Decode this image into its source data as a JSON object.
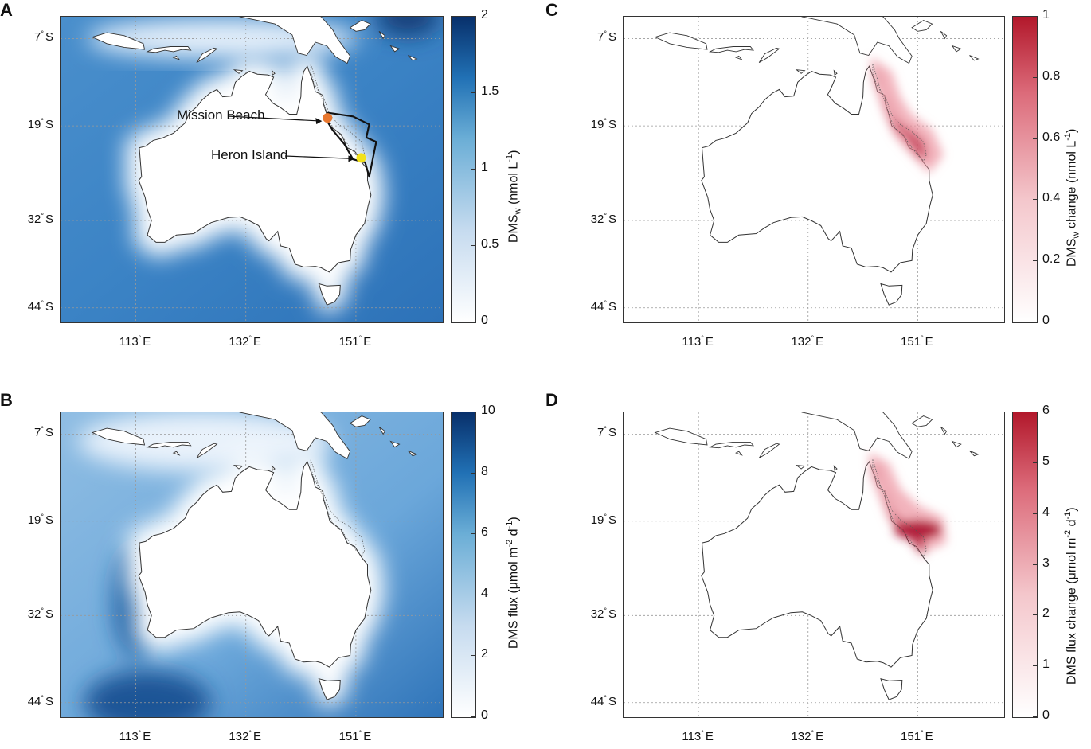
{
  "colors": {
    "blue_low": "#ffffff",
    "blue_high": "#08306b",
    "red_low": "#ffffff",
    "red_high": "#b2182b",
    "mission_beach": "#e8772e",
    "heron_island": "#f2e11a"
  },
  "axes": {
    "lat_ticks": [
      "7",
      "19",
      "32",
      "44"
    ],
    "lat_suffix": "S",
    "lon_ticks": [
      "113",
      "132",
      "151"
    ],
    "lon_suffix": "E"
  },
  "panels": [
    {
      "letter": "A",
      "scale": "blue",
      "colorbar": {
        "ticks": [
          "0",
          "0.5",
          "1",
          "1.5",
          "2"
        ],
        "min": 0,
        "max": 2,
        "title": "DMS",
        "title_sub": "w",
        "title_rest": " (nmol L",
        "title_sup": "-1",
        "title_end": ")"
      },
      "annotations": [
        {
          "label": "Mission Beach",
          "color_key": "mission_beach"
        },
        {
          "label": "Heron Island",
          "color_key": "heron_island"
        }
      ]
    },
    {
      "letter": "C",
      "scale": "red",
      "colorbar": {
        "ticks": [
          "0",
          "0.2",
          "0.4",
          "0.6",
          "0.8",
          "1"
        ],
        "min": 0,
        "max": 1,
        "title": "DMS",
        "title_sub": "w",
        "title_rest": " change (nmol L",
        "title_sup": "-1",
        "title_end": ")"
      }
    },
    {
      "letter": "B",
      "scale": "blue",
      "colorbar": {
        "ticks": [
          "0",
          "2",
          "4",
          "6",
          "8",
          "10"
        ],
        "min": 0,
        "max": 10,
        "title": "DMS flux (",
        "title_sub": "",
        "title_rest": "μmol m",
        "title_sup": "-2",
        "title_end": " d",
        "title_sup2": "-1",
        "title_end2": ")"
      }
    },
    {
      "letter": "D",
      "scale": "red",
      "colorbar": {
        "ticks": [
          "0",
          "1",
          "2",
          "3",
          "4",
          "5",
          "6"
        ],
        "min": 0,
        "max": 6,
        "title": "DMS flux change (",
        "title_sub": "",
        "title_rest": "μmol m",
        "title_sup": "-2",
        "title_end": " d",
        "title_sup2": "-1",
        "title_end2": ")"
      }
    }
  ]
}
